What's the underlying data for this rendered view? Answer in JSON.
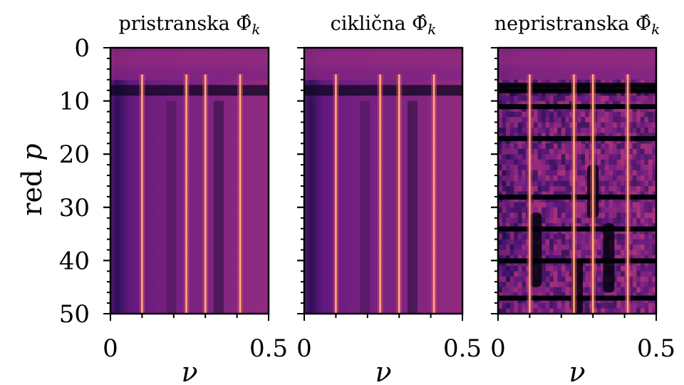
{
  "chart_data": {
    "type": "heatmap",
    "colormap": "magma",
    "ylabel": "red p",
    "ylabel_var": "p",
    "ylabel_prefix": "red ",
    "xlabel": "ν",
    "yrange": [
      50,
      0
    ],
    "y_major_ticks": [
      0,
      10,
      20,
      30,
      40,
      50
    ],
    "y_minor_step": 2,
    "panels": [
      {
        "title": "pristranska Φ̂",
        "title_sub": "k",
        "xlim": [
          0,
          0.5
        ],
        "x_ticks": [
          0,
          0.5
        ],
        "x_tick_labels": [
          "0",
          "0.5"
        ],
        "spectral_lines": [
          0.1,
          0.24,
          0.3,
          0.41
        ],
        "noise": "low",
        "dark_bands": []
      },
      {
        "title": "ciklična Φ̂",
        "title_sub": "k",
        "xlim": [
          0,
          0.5
        ],
        "x_ticks": [
          0,
          0.5
        ],
        "x_tick_labels": [
          "0",
          "0.5"
        ],
        "spectral_lines": [
          0.1,
          0.24,
          0.3,
          0.41
        ],
        "noise": "low",
        "dark_bands": []
      },
      {
        "title": "nepristranska Φ̂",
        "title_sub": "k",
        "xlim": [
          0,
          0.5
        ],
        "x_ticks": [
          0,
          0.5
        ],
        "x_tick_labels": [
          "0",
          "0.5"
        ],
        "spectral_lines": [
          0.1,
          0.24,
          0.3,
          0.41
        ],
        "noise": "high",
        "dark_bands": [
          7,
          8,
          11,
          17,
          28,
          34,
          40,
          47
        ]
      }
    ]
  }
}
